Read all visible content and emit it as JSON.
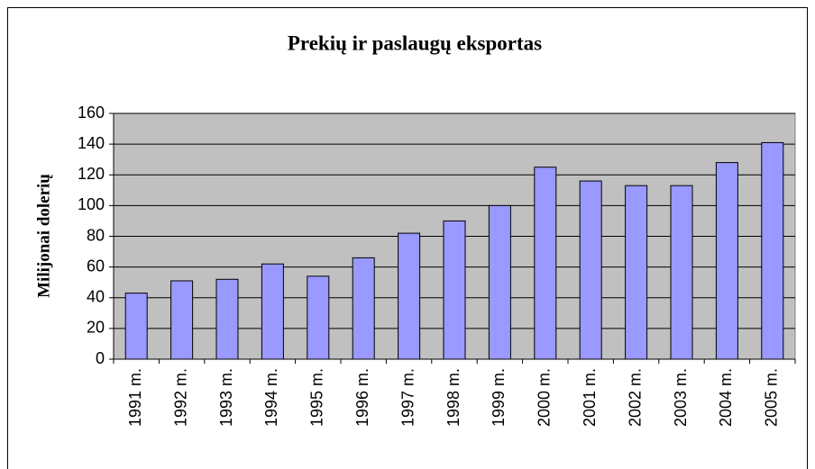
{
  "chart_data": {
    "type": "bar",
    "title": "Prekių ir paslaugų eksportas",
    "y_label": "Milijonai dolerių",
    "categories": [
      "1991 m.",
      "1992 m.",
      "1993 m.",
      "1994 m.",
      "1995 m.",
      "1996 m.",
      "1997 m.",
      "1998 m.",
      "1999 m.",
      "2000 m.",
      "2001 m.",
      "2002 m.",
      "2003 m.",
      "2004 m.",
      "2005 m."
    ],
    "values": [
      43,
      51,
      52,
      62,
      54,
      66,
      82,
      90,
      100,
      125,
      116,
      113,
      113,
      128,
      141
    ],
    "color": "#9999ff",
    "ylim": [
      0,
      160
    ],
    "yticks": [
      0,
      20,
      40,
      60,
      80,
      100,
      120,
      140,
      160
    ],
    "grid": true
  }
}
